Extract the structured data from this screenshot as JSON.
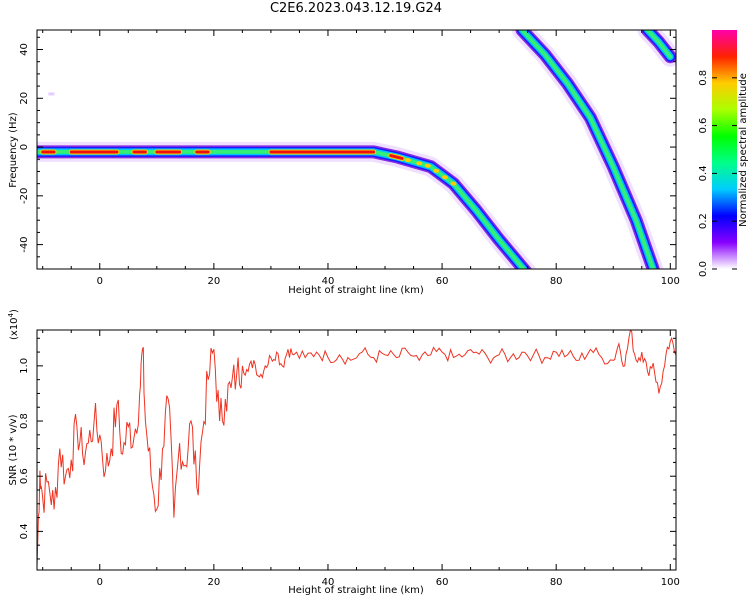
{
  "title": "C2E6.2023.043.12.19.G24",
  "chart_data": [
    {
      "type": "heatmap",
      "xlabel": "Height of straight line (km)",
      "ylabel": "Frequency (Hz)",
      "xlim": [
        -11,
        101
      ],
      "ylim": [
        -50,
        48
      ],
      "x_ticks": [
        "0",
        "20",
        "40",
        "60",
        "80",
        "100"
      ],
      "y_ticks": [
        "-40",
        "-20",
        "0",
        "20",
        "40"
      ],
      "colorbar": {
        "label": "Normalized spectral amplitude",
        "range": [
          0,
          1
        ],
        "ticks": [
          "0.0",
          "0.2",
          "0.4",
          "0.6",
          "0.8"
        ],
        "colors": [
          "#ffffff",
          "#8800ff",
          "#0000ff",
          "#00ccff",
          "#00ff88",
          "#00ff00",
          "#aaff00",
          "#ffcc00",
          "#ff2200",
          "#ff00aa"
        ]
      },
      "traces": [
        {
          "name": "",
          "x": [
            -11,
            48,
            52,
            58,
            62,
            66,
            70,
            75
          ],
          "y": [
            -2,
            -2,
            -4,
            -8,
            -15,
            -26,
            -38,
            -52
          ]
        },
        {
          "name": "",
          "x": [
            74,
            78,
            82,
            86,
            90,
            94,
            97
          ],
          "y": [
            48,
            38,
            26,
            12,
            -8,
            -30,
            -50
          ]
        },
        {
          "name": "",
          "x": [
            96,
            98,
            100
          ],
          "y": [
            48,
            43,
            37
          ]
        }
      ],
      "bright_segments_x": [
        [
          -10,
          -8
        ],
        [
          -5,
          3
        ],
        [
          6,
          8
        ],
        [
          10,
          14
        ],
        [
          17,
          19
        ],
        [
          30,
          48
        ],
        [
          51,
          53
        ]
      ]
    },
    {
      "type": "line",
      "xlabel": "Height of straight line (km)",
      "ylabel": "SNR (10 * v/v)",
      "multiplier": "(x10",
      "multiplier_exp": "4",
      "xlim": [
        -11,
        101
      ],
      "ylim": [
        0.26,
        1.13
      ],
      "x_ticks": [
        "0",
        "20",
        "40",
        "60",
        "80",
        "100"
      ],
      "y_ticks": [
        "0.4",
        "0.6",
        "0.8",
        "1.0"
      ],
      "color": "#ee3322",
      "x": [
        -11,
        -10.5,
        -10,
        -9,
        -8,
        -7,
        -6,
        -5,
        -4,
        -3,
        -2,
        -1,
        0,
        1,
        2,
        3,
        4,
        5,
        6,
        7,
        7.5,
        8,
        9,
        10,
        11,
        12,
        13,
        14,
        15,
        16,
        17,
        18,
        19,
        20,
        21,
        22,
        23,
        24,
        25,
        26,
        27,
        28,
        29,
        30,
        31,
        32,
        33,
        34,
        36,
        38,
        40,
        42,
        44,
        46,
        48,
        50,
        52,
        54,
        56,
        58,
        60,
        62,
        64,
        66,
        68,
        70,
        72,
        74,
        76,
        78,
        80,
        82,
        84,
        86,
        88,
        90,
        91,
        92,
        93,
        94,
        95,
        96,
        97,
        98,
        99,
        100,
        101
      ],
      "y": [
        0.27,
        0.62,
        0.52,
        0.58,
        0.48,
        0.7,
        0.6,
        0.66,
        0.78,
        0.68,
        0.72,
        0.8,
        0.75,
        0.62,
        0.7,
        0.86,
        0.68,
        0.78,
        0.74,
        0.9,
        1.06,
        0.8,
        0.6,
        0.48,
        0.7,
        0.88,
        0.45,
        0.72,
        0.64,
        0.8,
        0.56,
        0.76,
        0.95,
        1.06,
        0.8,
        0.88,
        0.92,
        0.97,
        1.0,
        0.98,
        1.02,
        0.96,
        1.0,
        1.03,
        1.05,
        1.0,
        1.06,
        1.04,
        1.03,
        1.05,
        1.03,
        1.04,
        1.02,
        1.05,
        1.03,
        1.04,
        1.03,
        1.05,
        1.02,
        1.04,
        1.05,
        1.03,
        1.04,
        1.05,
        1.03,
        1.04,
        1.03,
        1.05,
        1.04,
        1.03,
        1.05,
        1.04,
        1.02,
        1.06,
        1.03,
        1.02,
        1.08,
        1.0,
        1.13,
        1.02,
        1.05,
        0.98,
        1.01,
        0.9,
        1.0,
        1.09,
        1.04
      ]
    }
  ]
}
